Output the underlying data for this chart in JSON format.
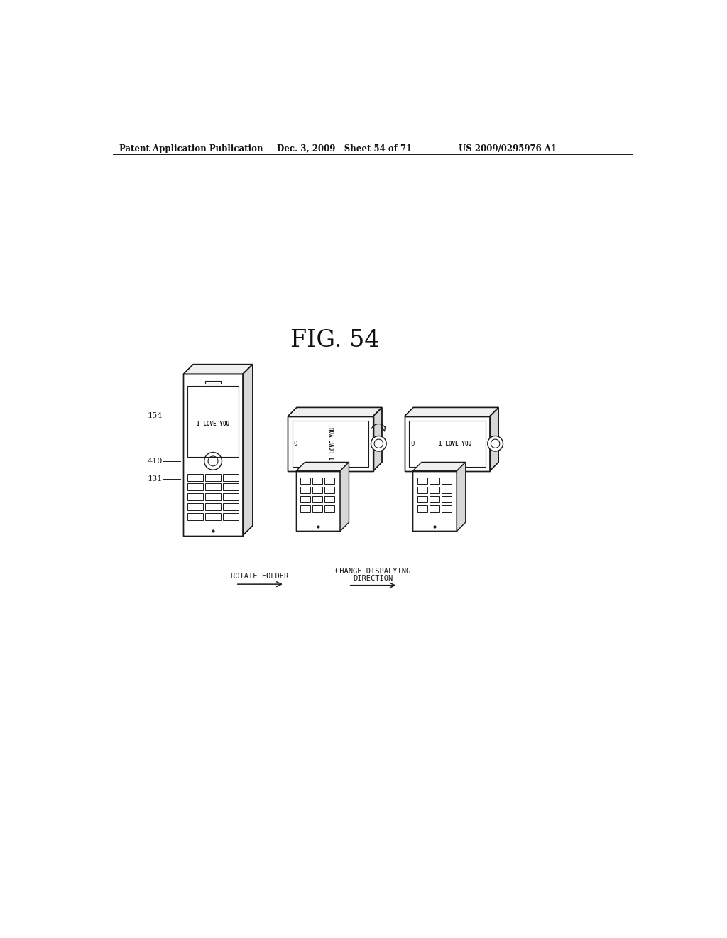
{
  "bg_color": "#ffffff",
  "header_left": "Patent Application Publication",
  "header_mid": "Dec. 3, 2009   Sheet 54 of 71",
  "header_right": "US 2009/0295976 A1",
  "fig_label": "FIG. 54",
  "label_154": "154",
  "label_410": "410",
  "label_131": "131",
  "arrow1_label": "ROTATE FOLDER",
  "arrow2_label1": "CHANGE DISPALYING",
  "arrow2_label2": "DIRECTION",
  "text_love_you": "I LOVE YOU",
  "text_love_you_rot": "I LOVE YOU",
  "text_love_you3": "I LOVE YOU"
}
